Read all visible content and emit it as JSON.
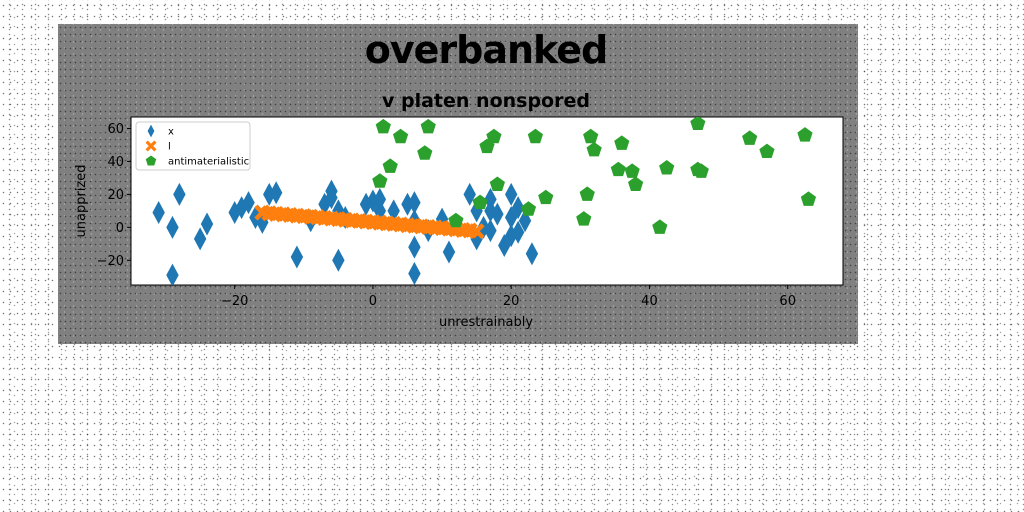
{
  "chart_data": {
    "type": "scatter",
    "suptitle": "overbanked",
    "title": "v platen nonspored",
    "xlabel": "unrestrainably",
    "ylabel": "unapprized",
    "xlim": [
      -35,
      68
    ],
    "ylim": [
      -35,
      67
    ],
    "xticks": [
      -20,
      0,
      20,
      40,
      60
    ],
    "yticks": [
      -20,
      0,
      20,
      40,
      60
    ],
    "xtick_labels": [
      "−20",
      "0",
      "20",
      "40",
      "60"
    ],
    "ytick_labels": [
      "−20",
      "0",
      "20",
      "40",
      "60"
    ],
    "grid": false,
    "legend_position": "top-left",
    "series": [
      {
        "name": "x",
        "marker": "thin-diamond",
        "color": "#1f77b4",
        "points": [
          [
            -31,
            9
          ],
          [
            -29,
            0
          ],
          [
            -28,
            20
          ],
          [
            -29,
            -29
          ],
          [
            -25,
            -7
          ],
          [
            -24,
            2
          ],
          [
            -20,
            9
          ],
          [
            -19,
            12
          ],
          [
            -18,
            15
          ],
          [
            -17,
            6
          ],
          [
            -16,
            3
          ],
          [
            -15,
            20
          ],
          [
            -14,
            21
          ],
          [
            -11,
            -18
          ],
          [
            -9,
            4
          ],
          [
            -7,
            14
          ],
          [
            -6,
            18
          ],
          [
            -6,
            22
          ],
          [
            -5,
            10
          ],
          [
            -5,
            -20
          ],
          [
            -4,
            6
          ],
          [
            -1,
            14
          ],
          [
            0,
            16
          ],
          [
            1,
            10
          ],
          [
            1,
            17
          ],
          [
            3,
            10
          ],
          [
            5,
            14
          ],
          [
            6,
            4
          ],
          [
            6,
            15
          ],
          [
            6,
            -12
          ],
          [
            6,
            -28
          ],
          [
            8,
            -2
          ],
          [
            10,
            5
          ],
          [
            11,
            -15
          ],
          [
            14,
            20
          ],
          [
            15,
            10
          ],
          [
            15,
            -7
          ],
          [
            16,
            0
          ],
          [
            17,
            17
          ],
          [
            17,
            10
          ],
          [
            17,
            -2
          ],
          [
            18,
            8
          ],
          [
            19,
            -11
          ],
          [
            20,
            6
          ],
          [
            20,
            -5
          ],
          [
            20,
            20
          ],
          [
            21,
            12
          ],
          [
            22,
            4
          ],
          [
            23,
            -16
          ],
          [
            21,
            -3
          ]
        ]
      },
      {
        "name": "l",
        "marker": "x-filled",
        "color": "#ff7f0e",
        "points": [
          [
            -16,
            9
          ],
          [
            -15,
            8.6
          ],
          [
            -14,
            8.2
          ],
          [
            -13,
            7.9
          ],
          [
            -12,
            7.5
          ],
          [
            -11,
            7.1
          ],
          [
            -10,
            6.8
          ],
          [
            -9,
            6.4
          ],
          [
            -8,
            6.1
          ],
          [
            -7,
            5.7
          ],
          [
            -6,
            5.3
          ],
          [
            -5,
            5.0
          ],
          [
            -4,
            4.6
          ],
          [
            -3,
            4.2
          ],
          [
            -2,
            3.9
          ],
          [
            -1,
            3.5
          ],
          [
            0,
            3.2
          ],
          [
            1,
            2.8
          ],
          [
            2,
            2.4
          ],
          [
            3,
            2.1
          ],
          [
            4,
            1.7
          ],
          [
            5,
            1.3
          ],
          [
            6,
            1.0
          ],
          [
            7,
            0.6
          ],
          [
            8,
            0.2
          ],
          [
            9,
            -0.1
          ],
          [
            10,
            -0.5
          ],
          [
            11,
            -0.8
          ],
          [
            12,
            -1.2
          ],
          [
            13,
            -1.6
          ],
          [
            14,
            -1.9
          ],
          [
            15,
            -2.3
          ]
        ]
      },
      {
        "name": "antimaterialistic",
        "marker": "pentagon",
        "color": "#2ca02c",
        "points": [
          [
            1,
            28
          ],
          [
            1.5,
            61
          ],
          [
            2.5,
            37
          ],
          [
            4,
            55
          ],
          [
            7.5,
            45
          ],
          [
            8,
            61
          ],
          [
            12,
            4
          ],
          [
            15.5,
            15
          ],
          [
            16.5,
            49
          ],
          [
            17.5,
            55
          ],
          [
            18,
            26
          ],
          [
            22.5,
            11
          ],
          [
            23.5,
            55
          ],
          [
            25,
            18
          ],
          [
            30.5,
            5
          ],
          [
            31,
            20
          ],
          [
            31.5,
            55
          ],
          [
            32,
            47
          ],
          [
            35.5,
            35
          ],
          [
            36,
            51
          ],
          [
            37.5,
            34
          ],
          [
            38,
            26
          ],
          [
            41.5,
            0
          ],
          [
            42.5,
            36
          ],
          [
            47,
            63
          ],
          [
            47,
            35
          ],
          [
            47.5,
            34
          ],
          [
            54.5,
            54
          ],
          [
            57,
            46
          ],
          [
            62.5,
            56
          ],
          [
            63,
            17
          ]
        ]
      }
    ]
  }
}
